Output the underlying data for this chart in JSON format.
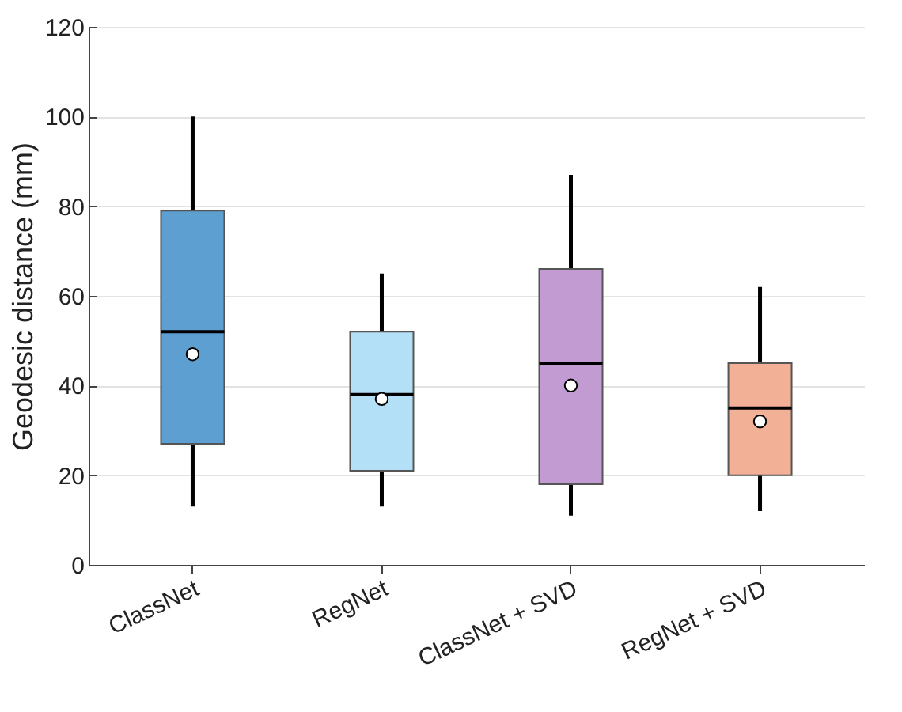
{
  "chart_data": {
    "type": "box",
    "ylabel": "Geodesic distance (mm)",
    "categories": [
      "ClassNet",
      "RegNet",
      "ClassNet + SVD",
      "RegNet + SVD"
    ],
    "colors": [
      "#5c9fd0",
      "#b3e0f6",
      "#c39bd3",
      "#f2b096"
    ],
    "boxes": [
      {
        "low": 13,
        "q1": 27,
        "median": 47,
        "q3": 79,
        "high": 100,
        "mean": 52
      },
      {
        "low": 13,
        "q1": 21,
        "median": 37,
        "q3": 52,
        "high": 65,
        "mean": 38
      },
      {
        "low": 11,
        "q1": 18,
        "median": 40,
        "q3": 66,
        "high": 87,
        "mean": 45
      },
      {
        "low": 12,
        "q1": 20,
        "median": 32,
        "q3": 45,
        "high": 62,
        "mean": 35
      }
    ],
    "ylim": [
      0,
      120
    ],
    "yticks": [
      0,
      20,
      40,
      60,
      80,
      100,
      120
    ],
    "grid": true
  }
}
